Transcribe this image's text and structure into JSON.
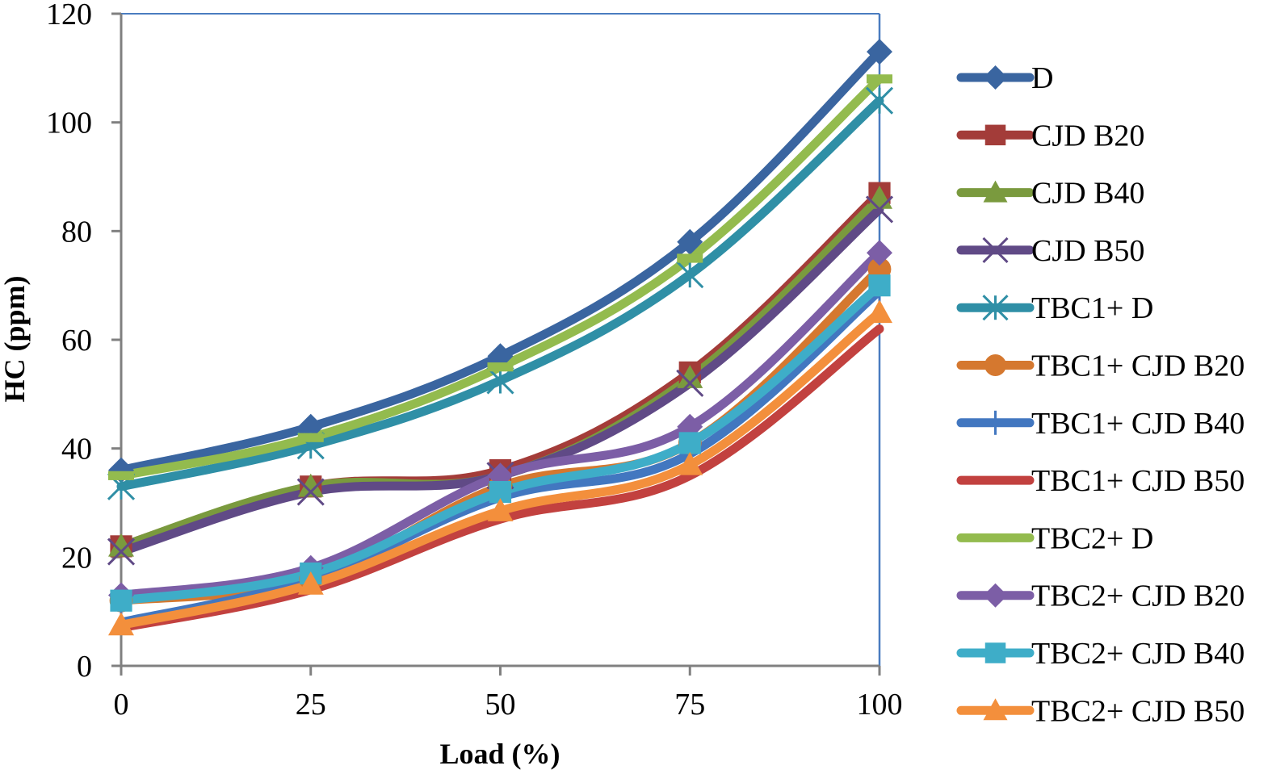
{
  "chart_data": {
    "type": "line",
    "title": "",
    "xlabel": "Load (%)",
    "ylabel": "HC (ppm)",
    "x": [
      0,
      25,
      50,
      75,
      100
    ],
    "xticks": [
      "0",
      "25",
      "50",
      "75",
      "100"
    ],
    "yticks": [
      "0",
      "20",
      "40",
      "60",
      "80",
      "100",
      "120"
    ],
    "xlim": [
      0,
      100
    ],
    "ylim": [
      0,
      120
    ],
    "grid": false,
    "smooth": true,
    "legend_position": "right",
    "series": [
      {
        "name": "D",
        "color": "#3a65a0",
        "marker": "diamond",
        "values": [
          36,
          44,
          57,
          78,
          113
        ]
      },
      {
        "name": "CJD B20",
        "color": "#a33c39",
        "marker": "square",
        "values": [
          22,
          33,
          36,
          54,
          87
        ]
      },
      {
        "name": "CJD B40",
        "color": "#7a9a3e",
        "marker": "triangle",
        "values": [
          22,
          33,
          35,
          53,
          86
        ]
      },
      {
        "name": "CJD B50",
        "color": "#604a86",
        "marker": "x",
        "values": [
          21,
          32,
          35,
          52,
          84
        ]
      },
      {
        "name": "TBC1+ D",
        "color": "#2f8fa6",
        "marker": "asterisk",
        "values": [
          33,
          40.5,
          52.5,
          72,
          104
        ]
      },
      {
        "name": "TBC1+ CJD B20",
        "color": "#d5782f",
        "marker": "circle",
        "values": [
          12,
          16,
          33,
          41,
          73
        ]
      },
      {
        "name": "TBC1+ CJD B40",
        "color": "#4277c0",
        "marker": "plus",
        "values": [
          8,
          16,
          31,
          39,
          69
        ]
      },
      {
        "name": "TBC1+ CJD B50",
        "color": "#c2413f",
        "marker": "none",
        "values": [
          7,
          14,
          27,
          35,
          62
        ]
      },
      {
        "name": "TBC2+ D",
        "color": "#93bb4e",
        "marker": "dash",
        "values": [
          35,
          42,
          55,
          75,
          108
        ]
      },
      {
        "name": "TBC2+ CJD B20",
        "color": "#7c5ea6",
        "marker": "diamond",
        "values": [
          13,
          18,
          35,
          44,
          76
        ]
      },
      {
        "name": "TBC2+ CJD B40",
        "color": "#3eadc8",
        "marker": "square",
        "values": [
          12,
          17,
          32,
          41,
          70
        ]
      },
      {
        "name": "TBC2+ CJD B50",
        "color": "#f38f3c",
        "marker": "triangle",
        "values": [
          7.5,
          15,
          28.5,
          37,
          65
        ]
      }
    ],
    "axis_color": "#808080",
    "frame_color": "#4a7cc0"
  }
}
